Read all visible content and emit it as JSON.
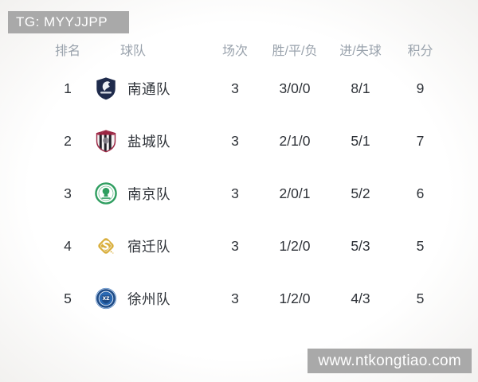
{
  "watermarks": {
    "top_left": "TG: MYYJJPP",
    "bottom_right": "www.ntkongtiao.com"
  },
  "table": {
    "headers": [
      "排名",
      "球队",
      "场次",
      "胜/平/负",
      "进/失球",
      "积分"
    ],
    "rows": [
      {
        "rank": "1",
        "team": "南通队",
        "logo": "nantong-crest",
        "played": "3",
        "win_draw_loss": "3/0/0",
        "goals_for_against": "8/1",
        "points": "9"
      },
      {
        "rank": "2",
        "team": "盐城队",
        "logo": "yancheng-crest",
        "played": "3",
        "win_draw_loss": "2/1/0",
        "goals_for_against": "5/1",
        "points": "7"
      },
      {
        "rank": "3",
        "team": "南京队",
        "logo": "nanjing-crest",
        "played": "3",
        "win_draw_loss": "2/0/1",
        "goals_for_against": "5/2",
        "points": "6"
      },
      {
        "rank": "4",
        "team": "宿迁队",
        "logo": "suqian-crest",
        "played": "3",
        "win_draw_loss": "1/2/0",
        "goals_for_against": "5/3",
        "points": "5"
      },
      {
        "rank": "5",
        "team": "徐州队",
        "logo": "xuzhou-crest",
        "played": "3",
        "win_draw_loss": "1/2/0",
        "goals_for_against": "4/3",
        "points": "5"
      }
    ]
  },
  "colors": {
    "watermark_bg": "#a9a9a9",
    "watermark_text": "#ffffff",
    "header_text": "#99a2ac",
    "body_text": "#2e3238",
    "background": "#fdfdfd",
    "crest_nantong_navy": "#1f2b4c",
    "crest_yancheng_crimson": "#9c2442",
    "crest_nanjing_green": "#2f9e60",
    "crest_suqian_gold": "#d9af3d",
    "crest_xuzhou_blue": "#2a69b3"
  }
}
